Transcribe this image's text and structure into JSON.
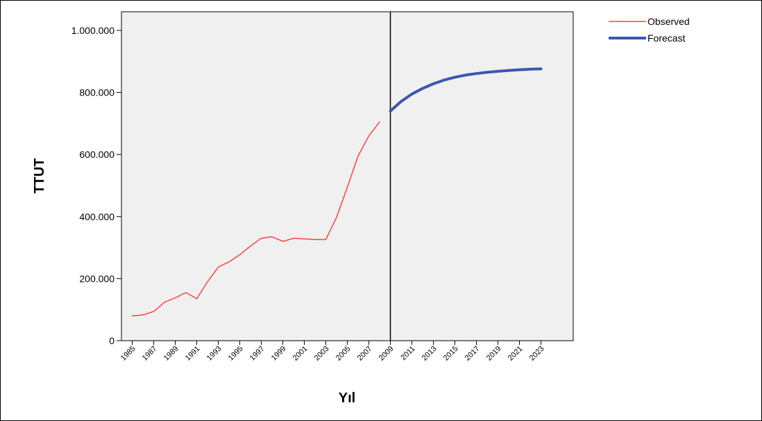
{
  "chart_data": {
    "type": "line",
    "xlabel": "Yıl",
    "ylabel": "TTUT",
    "x_range": [
      1984,
      2026
    ],
    "ylim": [
      0,
      1060000
    ],
    "y_ticks": [
      0,
      200000,
      400000,
      600000,
      800000,
      1000000
    ],
    "y_tick_labels": [
      "0",
      "200.000",
      "400.000",
      "600.000",
      "800.000",
      "1.000.000"
    ],
    "x_tick_labels": [
      "1985",
      "1987",
      "1989",
      "1991",
      "1993",
      "1995",
      "1997",
      "1999",
      "2001",
      "2003",
      "2005",
      "2007",
      "2009",
      "2011",
      "2013",
      "2015",
      "2017",
      "2019",
      "2021",
      "2023"
    ],
    "divider_x": 2009,
    "grid": false,
    "legend_position": "top-right",
    "series": [
      {
        "name": "Observed",
        "color": "#ff4040",
        "x": [
          1985,
          1986,
          1987,
          1988,
          1989,
          1990,
          1991,
          1992,
          1993,
          1994,
          1995,
          1996,
          1997,
          1998,
          1999,
          2000,
          2001,
          2002,
          2003,
          2004,
          2005,
          2006,
          2007,
          2008
        ],
        "values": [
          80000,
          83000,
          94000,
          124000,
          138000,
          155000,
          135000,
          190000,
          237000,
          254000,
          277000,
          305000,
          330000,
          335000,
          320000,
          330000,
          328000,
          326000,
          326000,
          398000,
          495000,
          595000,
          660000,
          705000
        ]
      },
      {
        "name": "Forecast",
        "color": "#3b55b0",
        "x": [
          2009,
          2010,
          2011,
          2012,
          2013,
          2014,
          2015,
          2016,
          2017,
          2018,
          2019,
          2020,
          2021,
          2022,
          2023
        ],
        "values": [
          740000,
          771000,
          795000,
          813000,
          828000,
          840000,
          849000,
          856000,
          861000,
          865000,
          868000,
          871000,
          873000,
          875000,
          876000
        ]
      }
    ]
  }
}
